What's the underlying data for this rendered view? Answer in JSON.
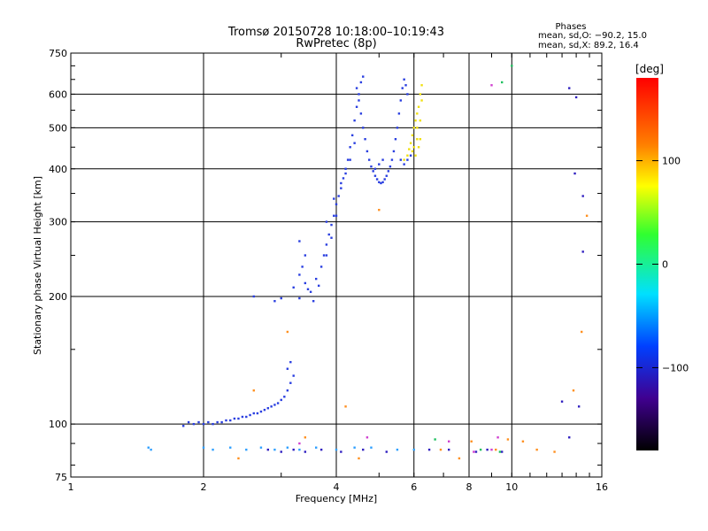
{
  "chart_data": {
    "type": "scatter",
    "title_line1": "Tromsø 20150728 10:18:00–10:19:43",
    "title_line2": "RwPretec (8p)",
    "stats_title": "Phases",
    "stats_line1": "mean, sd,O: −90.2, 15.0",
    "stats_line2": "mean, sd,X:  89.2, 16.4",
    "xlabel": "Frequency [MHz]",
    "ylabel": "Stationary phase Virtual Height [km]",
    "x_scale": "log",
    "y_scale": "log",
    "xlim": [
      1,
      16
    ],
    "ylim": [
      75,
      750
    ],
    "x_ticks": [
      1,
      2,
      4,
      6,
      8,
      10,
      16
    ],
    "y_ticks": [
      75,
      100,
      200,
      300,
      400,
      500,
      600,
      750
    ],
    "grid": true,
    "colorbar": {
      "label": "[deg]",
      "range": [
        -180,
        180
      ],
      "ticks": [
        100,
        0,
        -100
      ]
    },
    "series": [
      {
        "color": "#2a3fe0",
        "points": [
          [
            1.8,
            99
          ],
          [
            1.85,
            101
          ],
          [
            1.9,
            100
          ],
          [
            1.95,
            101
          ],
          [
            2.0,
            100
          ],
          [
            2.05,
            101
          ],
          [
            2.1,
            100
          ],
          [
            2.15,
            101
          ],
          [
            2.2,
            101
          ],
          [
            2.25,
            102
          ],
          [
            2.3,
            102
          ],
          [
            2.35,
            103
          ],
          [
            2.4,
            103
          ],
          [
            2.45,
            104
          ],
          [
            2.5,
            104
          ],
          [
            2.55,
            105
          ],
          [
            2.6,
            106
          ],
          [
            2.65,
            106
          ],
          [
            2.7,
            107
          ],
          [
            2.75,
            108
          ],
          [
            2.8,
            109
          ],
          [
            2.85,
            110
          ],
          [
            2.9,
            111
          ],
          [
            2.95,
            112
          ],
          [
            3.0,
            114
          ],
          [
            3.05,
            116
          ],
          [
            3.1,
            120
          ],
          [
            3.15,
            125
          ],
          [
            3.2,
            130
          ],
          [
            3.1,
            135
          ],
          [
            3.15,
            140
          ],
          [
            2.6,
            200
          ],
          [
            2.9,
            195
          ],
          [
            3.0,
            198
          ],
          [
            3.2,
            210
          ],
          [
            3.3,
            225
          ],
          [
            3.35,
            235
          ],
          [
            3.4,
            250
          ],
          [
            3.3,
            270
          ],
          [
            3.4,
            215
          ],
          [
            3.5,
            205
          ],
          [
            3.6,
            220
          ],
          [
            3.7,
            235
          ],
          [
            3.75,
            250
          ],
          [
            3.8,
            265
          ],
          [
            3.85,
            280
          ],
          [
            3.9,
            295
          ],
          [
            3.95,
            310
          ],
          [
            4.0,
            330
          ],
          [
            4.05,
            345
          ],
          [
            4.1,
            360
          ],
          [
            4.15,
            380
          ],
          [
            4.2,
            400
          ],
          [
            4.25,
            420
          ],
          [
            4.3,
            450
          ],
          [
            4.35,
            480
          ],
          [
            4.4,
            520
          ],
          [
            4.45,
            560
          ],
          [
            4.5,
            600
          ],
          [
            4.55,
            640
          ],
          [
            4.6,
            660
          ],
          [
            4.45,
            620
          ],
          [
            4.5,
            580
          ],
          [
            4.55,
            540
          ],
          [
            4.6,
            500
          ],
          [
            4.65,
            470
          ],
          [
            4.7,
            440
          ],
          [
            4.75,
            420
          ],
          [
            4.8,
            405
          ],
          [
            4.85,
            395
          ],
          [
            4.9,
            385
          ],
          [
            4.95,
            378
          ],
          [
            5.0,
            372
          ],
          [
            5.05,
            370
          ],
          [
            5.1,
            372
          ],
          [
            5.15,
            378
          ],
          [
            5.2,
            385
          ],
          [
            5.25,
            395
          ],
          [
            5.3,
            405
          ],
          [
            5.35,
            420
          ],
          [
            5.4,
            440
          ],
          [
            5.45,
            470
          ],
          [
            5.5,
            500
          ],
          [
            5.55,
            540
          ],
          [
            5.6,
            580
          ],
          [
            5.65,
            620
          ],
          [
            5.7,
            650
          ],
          [
            5.75,
            630
          ],
          [
            5.8,
            600
          ],
          [
            5.6,
            420
          ],
          [
            5.7,
            410
          ],
          [
            5.8,
            420
          ],
          [
            5.9,
            430
          ],
          [
            4.9,
            400
          ],
          [
            5.0,
            410
          ],
          [
            5.1,
            420
          ],
          [
            3.3,
            198
          ],
          [
            3.45,
            208
          ],
          [
            3.55,
            195
          ],
          [
            3.65,
            212
          ],
          [
            3.8,
            300
          ],
          [
            3.95,
            340
          ],
          [
            4.1,
            370
          ],
          [
            3.8,
            250
          ],
          [
            3.9,
            275
          ],
          [
            4.0,
            310
          ],
          [
            4.2,
            390
          ],
          [
            4.3,
            420
          ],
          [
            4.4,
            460
          ]
        ]
      },
      {
        "color": "#f0e010",
        "points": [
          [
            5.7,
            420
          ],
          [
            5.8,
            430
          ],
          [
            5.85,
            445
          ],
          [
            5.9,
            460
          ],
          [
            5.95,
            480
          ],
          [
            6.0,
            500
          ],
          [
            6.05,
            520
          ],
          [
            6.1,
            540
          ],
          [
            6.15,
            560
          ],
          [
            6.2,
            600
          ],
          [
            6.25,
            630
          ],
          [
            6.1,
            470
          ],
          [
            6.0,
            450
          ],
          [
            5.95,
            440
          ],
          [
            6.05,
            430
          ],
          [
            6.15,
            450
          ],
          [
            6.2,
            470
          ],
          [
            6.1,
            500
          ],
          [
            6.2,
            520
          ],
          [
            6.25,
            580
          ]
        ]
      },
      {
        "color": "#30a0ff",
        "points": [
          [
            1.5,
            88
          ],
          [
            1.52,
            87
          ],
          [
            2.0,
            88
          ],
          [
            2.1,
            87
          ],
          [
            2.3,
            88
          ],
          [
            2.5,
            87
          ],
          [
            2.7,
            88
          ],
          [
            2.9,
            87
          ],
          [
            3.1,
            88
          ],
          [
            3.3,
            87
          ],
          [
            3.6,
            88
          ],
          [
            4.0,
            87
          ],
          [
            4.4,
            88
          ],
          [
            4.8,
            88
          ],
          [
            5.5,
            87
          ],
          [
            6.0,
            87
          ]
        ]
      },
      {
        "color": "#3020c0",
        "points": [
          [
            2.8,
            87
          ],
          [
            3.0,
            86
          ],
          [
            3.2,
            87
          ],
          [
            3.4,
            86
          ],
          [
            3.7,
            87
          ],
          [
            4.1,
            86
          ],
          [
            4.6,
            87
          ],
          [
            5.2,
            86
          ],
          [
            6.5,
            87
          ],
          [
            7.2,
            87
          ],
          [
            8.3,
            86
          ],
          [
            8.8,
            87
          ],
          [
            9.5,
            86
          ],
          [
            13.0,
            113
          ],
          [
            13.5,
            93
          ],
          [
            14.2,
            110
          ],
          [
            13.9,
            390
          ],
          [
            14.5,
            345
          ],
          [
            14.5,
            255
          ],
          [
            13.5,
            620
          ],
          [
            14.0,
            590
          ]
        ]
      },
      {
        "color": "#ff9020",
        "points": [
          [
            3.1,
            165
          ],
          [
            3.4,
            93
          ],
          [
            4.5,
            83
          ],
          [
            6.9,
            87
          ],
          [
            7.6,
            83
          ],
          [
            8.1,
            91
          ],
          [
            9.2,
            87
          ],
          [
            9.8,
            92
          ],
          [
            10.6,
            91
          ],
          [
            11.4,
            87
          ],
          [
            12.5,
            86
          ],
          [
            14.8,
            310
          ],
          [
            14.4,
            165
          ],
          [
            13.8,
            120
          ],
          [
            5.0,
            320
          ],
          [
            4.2,
            110
          ],
          [
            2.4,
            83
          ],
          [
            2.6,
            120
          ]
        ]
      },
      {
        "color": "#20c060",
        "points": [
          [
            8.5,
            87
          ],
          [
            9.4,
            86
          ],
          [
            6.7,
            92
          ],
          [
            10.0,
            700
          ],
          [
            9.5,
            640
          ]
        ]
      },
      {
        "color": "#d040d0",
        "points": [
          [
            7.2,
            91
          ],
          [
            8.2,
            86
          ],
          [
            9.0,
            87
          ],
          [
            3.3,
            90
          ],
          [
            4.7,
            93
          ],
          [
            9.3,
            93
          ],
          [
            9.0,
            630
          ]
        ]
      }
    ]
  }
}
